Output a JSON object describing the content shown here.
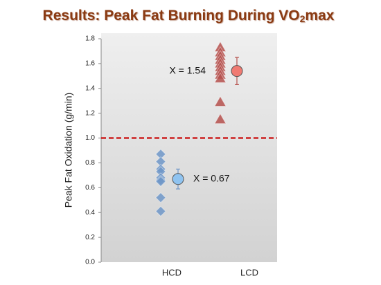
{
  "chart_data": {
    "type": "strip",
    "title_parts": [
      "Results: Peak Fat Burning During VO",
      "2",
      "max"
    ],
    "y_label": "Peak Fat Oxidation (g/min)",
    "categories": [
      "HCD",
      "LCD"
    ],
    "series": [
      {
        "color": "#6f96c8",
        "marker": "diamond",
        "values": [
          0.87,
          0.81,
          0.75,
          0.73,
          0.68,
          0.66,
          0.65,
          0.52,
          0.41
        ]
      },
      {
        "color": "#b5504c",
        "marker": "triangle",
        "values": [
          1.73,
          1.69,
          1.66,
          1.63,
          1.6,
          1.57,
          1.54,
          1.51,
          1.48,
          1.29,
          1.15
        ]
      }
    ],
    "means": [
      0.67,
      1.54
    ],
    "errors": [
      0.08,
      0.11
    ],
    "mean_colors": [
      "#8fc3f0",
      "#f07a72"
    ],
    "mean_labels": [
      "X = 0.67",
      "X = 1.54"
    ],
    "reference_line": 1.0,
    "reference_color": "#cc1f1f",
    "ylim": [
      0,
      1.8
    ],
    "yticks": [
      {
        "value": 0,
        "label": "0.0"
      },
      0.2,
      0.4,
      0.6,
      0.8,
      {
        "value": 1,
        "label": "1.0"
      },
      1.2,
      1.4,
      1.6,
      1.8
    ]
  }
}
